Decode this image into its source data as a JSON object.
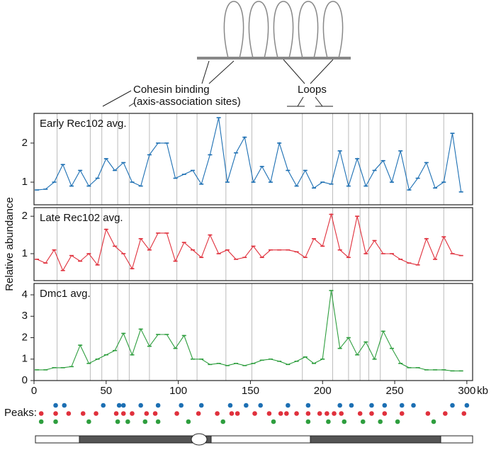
{
  "diagram": {
    "labels": [
      "Cohesin binding",
      "(axis-association sites)",
      "Loops"
    ]
  },
  "cohesin_sites": [
    16,
    39,
    47,
    58,
    66,
    80,
    99,
    113,
    133,
    151,
    186,
    207,
    218,
    226,
    232,
    240,
    258,
    284
  ],
  "chart_data": [
    {
      "type": "line",
      "xlim": [
        0,
        304
      ],
      "ylim": [
        0.42,
        2.76
      ],
      "yticks": [
        1,
        2
      ],
      "x": [
        2,
        8,
        14,
        20,
        26,
        32,
        38,
        44,
        50,
        56,
        62,
        68,
        74,
        80,
        86,
        92,
        98,
        104,
        110,
        116,
        122,
        128,
        134,
        140,
        146,
        152,
        158,
        164,
        170,
        176,
        182,
        188,
        194,
        200,
        206,
        212,
        218,
        224,
        230,
        236,
        242,
        248,
        254,
        260,
        266,
        272,
        278,
        284,
        290,
        296
      ],
      "series": [
        {
          "name": "Early Rec102 avg.",
          "color": "#1c6fb3",
          "values": [
            0.8,
            0.82,
            1.0,
            1.45,
            0.9,
            1.3,
            0.9,
            1.1,
            1.6,
            1.3,
            1.5,
            1.0,
            0.9,
            1.7,
            2.0,
            2.0,
            1.1,
            1.2,
            1.3,
            0.95,
            1.7,
            2.65,
            1.0,
            1.75,
            2.15,
            1.0,
            1.4,
            1.0,
            2.0,
            1.3,
            0.9,
            1.3,
            0.85,
            1.0,
            0.95,
            1.8,
            0.9,
            1.6,
            0.9,
            1.3,
            1.55,
            1.0,
            1.8,
            0.8,
            1.1,
            1.5,
            0.85,
            1.0,
            2.25,
            0.75
          ]
        }
      ]
    },
    {
      "type": "line",
      "xlim": [
        0,
        304
      ],
      "ylim": [
        0.28,
        2.23
      ],
      "yticks": [
        1,
        2
      ],
      "ylabel": "Relative abundance",
      "x": [
        2,
        8,
        14,
        20,
        26,
        32,
        38,
        44,
        50,
        56,
        62,
        68,
        74,
        80,
        86,
        92,
        98,
        104,
        110,
        116,
        122,
        128,
        134,
        140,
        146,
        152,
        158,
        164,
        170,
        176,
        182,
        188,
        194,
        200,
        206,
        212,
        218,
        224,
        230,
        236,
        242,
        248,
        254,
        260,
        266,
        272,
        278,
        284,
        290,
        296
      ],
      "series": [
        {
          "name": "Late Rec102 avg.",
          "color": "#e0303c",
          "values": [
            0.85,
            0.75,
            1.1,
            0.55,
            0.95,
            0.8,
            1.0,
            0.7,
            1.65,
            1.2,
            1.0,
            0.6,
            1.4,
            1.1,
            1.55,
            1.55,
            0.8,
            1.3,
            1.1,
            0.9,
            1.5,
            1.0,
            1.1,
            0.85,
            0.9,
            1.2,
            0.9,
            1.1,
            1.1,
            1.1,
            1.05,
            0.9,
            1.4,
            1.2,
            2.05,
            1.1,
            0.9,
            2.0,
            1.0,
            1.35,
            1.0,
            1.0,
            0.85,
            0.75,
            0.7,
            1.4,
            0.85,
            1.45,
            1.0,
            0.95
          ]
        }
      ]
    },
    {
      "type": "line",
      "xlim": [
        0,
        304
      ],
      "ylim": [
        0,
        4.53
      ],
      "yticks": [
        0,
        1,
        2,
        3,
        4
      ],
      "xticks": [
        0,
        50,
        100,
        150,
        200,
        250,
        300
      ],
      "xlabel": "kb",
      "x": [
        2,
        8,
        14,
        20,
        26,
        32,
        38,
        44,
        50,
        56,
        62,
        68,
        74,
        80,
        86,
        92,
        98,
        104,
        110,
        116,
        122,
        128,
        134,
        140,
        146,
        152,
        158,
        164,
        170,
        176,
        182,
        188,
        194,
        200,
        206,
        212,
        218,
        224,
        230,
        236,
        242,
        248,
        254,
        260,
        266,
        272,
        278,
        284,
        290,
        296
      ],
      "series": [
        {
          "name": "Dmc1 avg.",
          "color": "#2e9e3e",
          "values": [
            0.5,
            0.5,
            0.6,
            0.6,
            0.65,
            1.65,
            0.8,
            1.0,
            1.2,
            1.4,
            2.2,
            1.2,
            2.4,
            1.6,
            2.15,
            2.15,
            1.5,
            2.1,
            1.0,
            1.0,
            0.75,
            0.8,
            0.7,
            0.8,
            0.7,
            0.8,
            0.95,
            1.0,
            0.9,
            0.75,
            0.9,
            1.1,
            0.8,
            1.0,
            4.2,
            1.5,
            2.0,
            1.2,
            1.8,
            1.0,
            2.3,
            1.5,
            0.8,
            0.6,
            0.6,
            0.5,
            0.5,
            0.5,
            0.45,
            0.45
          ]
        }
      ]
    }
  ],
  "peaks": {
    "label": "Peaks:",
    "rows": [
      {
        "color": "#1c6fb3",
        "x": [
          15,
          21,
          48,
          59,
          62,
          74,
          86,
          102,
          116,
          136,
          147,
          157,
          176,
          190,
          212,
          220,
          234,
          243,
          255,
          263,
          290,
          300
        ]
      },
      {
        "color": "#e0303c",
        "x": [
          5,
          15,
          24,
          34,
          43,
          57,
          62,
          68,
          78,
          84,
          99,
          114,
          127,
          137,
          141,
          153,
          163,
          171,
          175,
          182,
          190,
          198,
          203,
          208,
          213,
          226,
          234,
          243,
          255,
          273,
          285,
          298
        ]
      },
      {
        "color": "#2e9e3e",
        "x": [
          5,
          15,
          38,
          58,
          65,
          77,
          86,
          107,
          131,
          166,
          190,
          204,
          215,
          228,
          240,
          252,
          277
        ]
      }
    ]
  }
}
